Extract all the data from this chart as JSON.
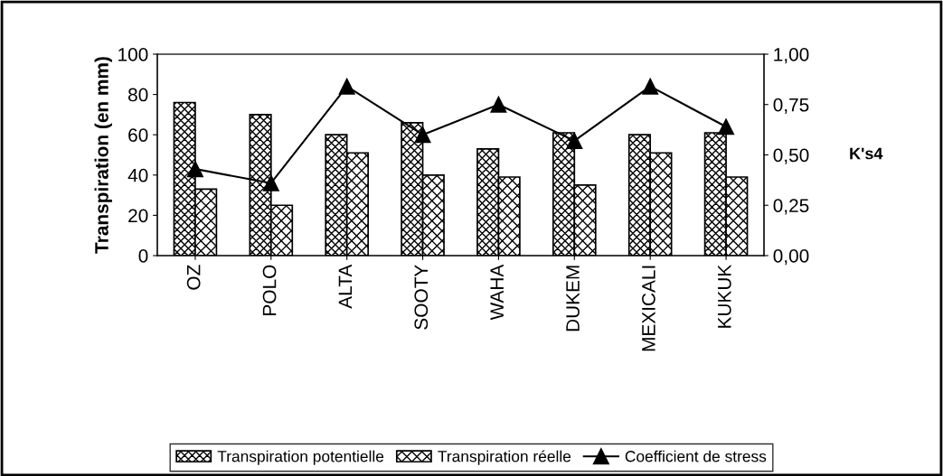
{
  "chart_data": {
    "type": "bar",
    "categories": [
      "OZ",
      "POLO",
      "ALTA",
      "SOOTY",
      "WAHA",
      "DUKEM",
      "MEXICALI",
      "KUKUK"
    ],
    "ylabel": "Transpiration (en mm)",
    "y2label": "K's4",
    "ylim": [
      0,
      100
    ],
    "yticks": [
      0,
      20,
      40,
      60,
      80,
      100
    ],
    "y2lim": [
      0,
      1
    ],
    "y2ticks": [
      {
        "value": 0,
        "label": "0,00"
      },
      {
        "value": 0.25,
        "label": "0,25"
      },
      {
        "value": 0.5,
        "label": "0,50"
      },
      {
        "value": 0.75,
        "label": "0,75"
      },
      {
        "value": 1,
        "label": "1,00"
      }
    ],
    "series": [
      {
        "name": "Transpiration potentielle",
        "color": "#000000",
        "values": [
          76,
          70,
          60,
          66,
          53,
          61,
          60,
          61
        ]
      },
      {
        "name": "Transpiration réelle",
        "color": "#000000",
        "values": [
          33,
          25,
          51,
          40,
          39,
          35,
          51,
          39
        ]
      },
      {
        "name": "Coefficient de stress",
        "type": "line",
        "axis": "y2",
        "color": "#000000",
        "marker": "triangle",
        "values": [
          0.43,
          0.36,
          0.84,
          0.6,
          0.75,
          0.57,
          0.84,
          0.64
        ]
      }
    ],
    "grid": false,
    "legend": "bottom"
  }
}
